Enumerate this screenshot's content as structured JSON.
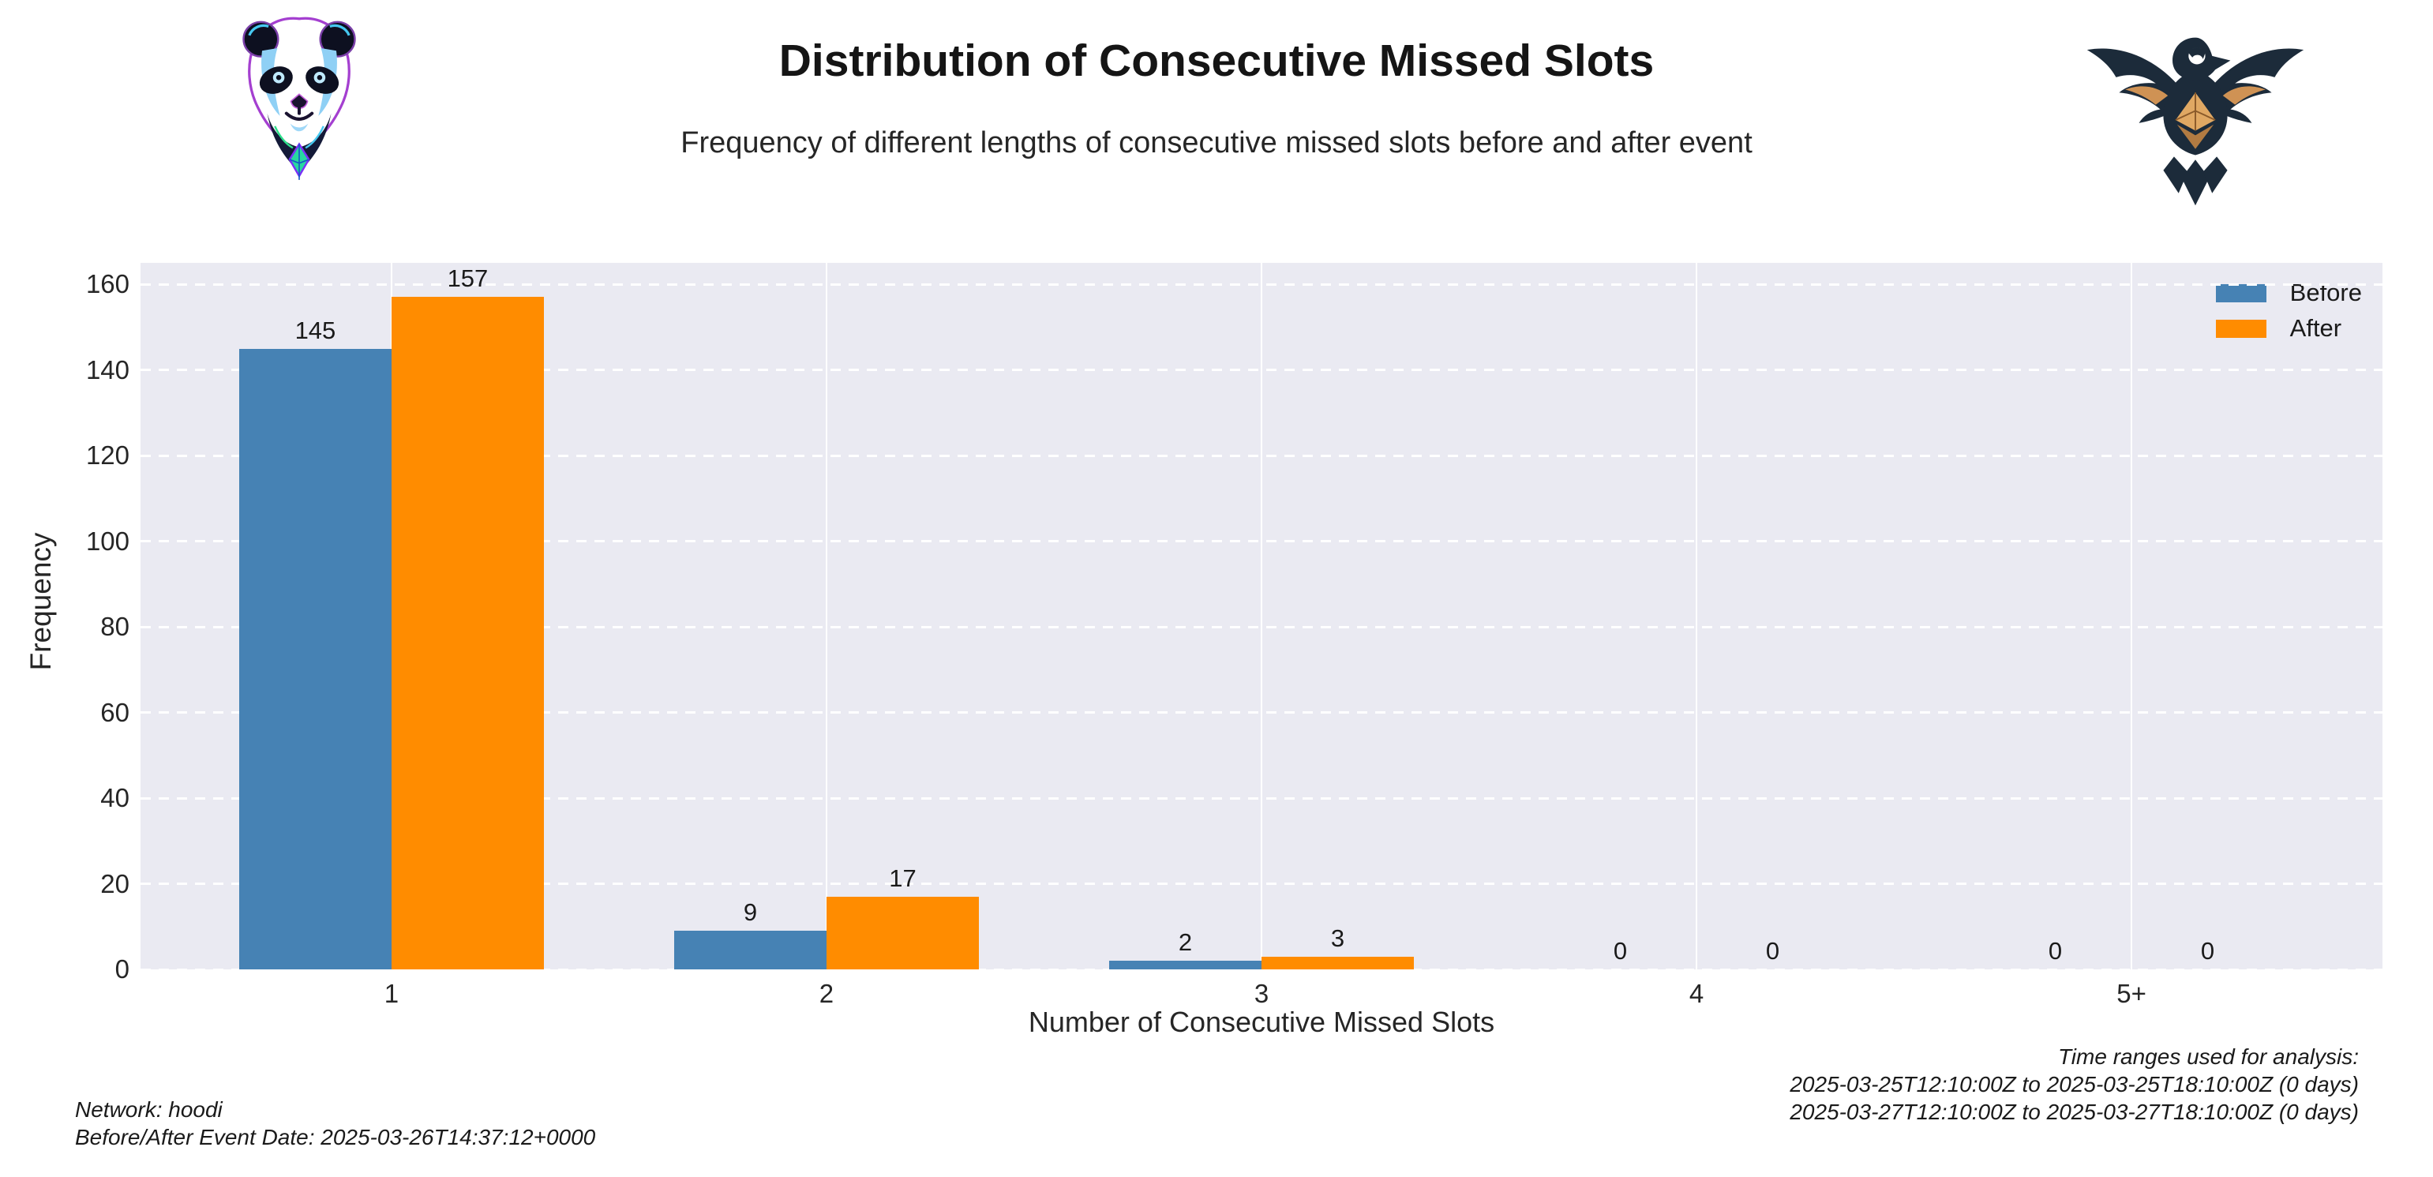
{
  "header": {
    "title": "Distribution of Consecutive Missed Slots",
    "subtitle": "Frequency of different lengths of consecutive missed slots before and after event",
    "left_logo": "panda-ethereum-logo",
    "right_logo": "eagle-ethereum-logo"
  },
  "chart_data": {
    "type": "bar",
    "title": "Distribution of Consecutive Missed Slots",
    "subtitle": "Frequency of different lengths of consecutive missed slots before and after event",
    "categories": [
      "1",
      "2",
      "3",
      "4",
      "5+"
    ],
    "series": [
      {
        "name": "Before",
        "color": "#4682B4",
        "values": [
          145,
          9,
          2,
          0,
          0
        ]
      },
      {
        "name": "After",
        "color": "#FF8C00",
        "values": [
          157,
          17,
          3,
          0,
          0
        ]
      }
    ],
    "xlabel": "Number of Consecutive Missed Slots",
    "ylabel": "Frequency",
    "ylim": [
      0,
      165
    ],
    "yticks": [
      0,
      20,
      40,
      60,
      80,
      100,
      120,
      140,
      160
    ],
    "grid": true,
    "bar_value_labels": true,
    "legend_position": "upper right",
    "plot_background": "#EAEAF2",
    "gridline_color": "#ffffff"
  },
  "footer": {
    "left_lines": [
      "Network: hoodi",
      "Before/After Event Date: 2025-03-26T14:37:12+0000"
    ],
    "right_lines": [
      "Time ranges used for analysis:",
      "2025-03-25T12:10:00Z to 2025-03-25T18:10:00Z (0 days)",
      "2025-03-27T12:10:00Z to 2025-03-27T18:10:00Z (0 days)"
    ]
  }
}
